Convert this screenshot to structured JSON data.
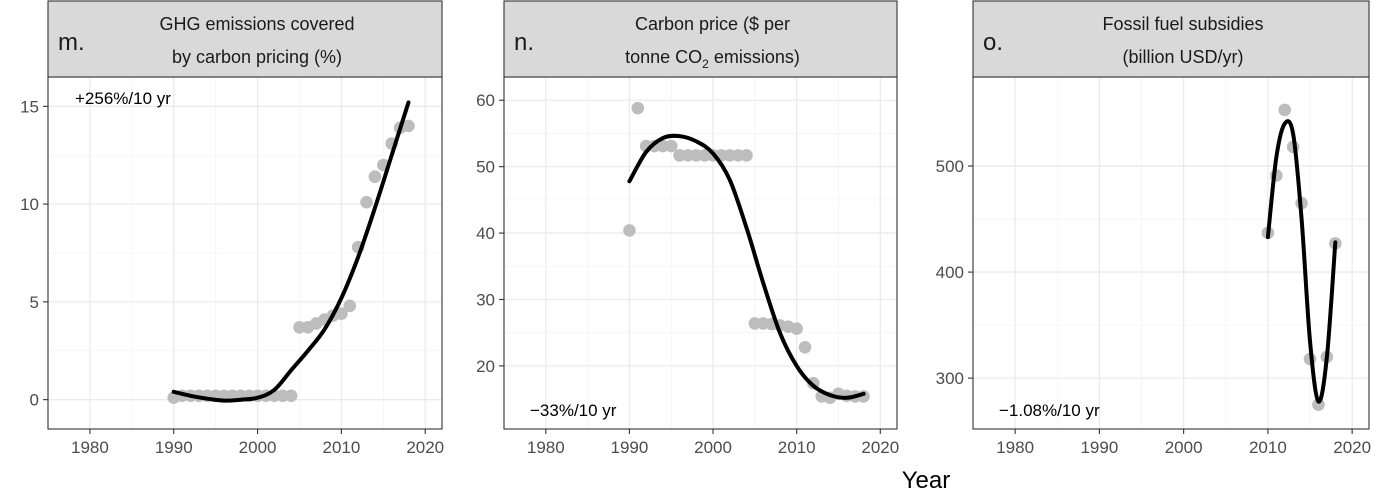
{
  "chart_data": [
    {
      "type": "scatter",
      "panel_letter": "m.",
      "title_lines": [
        "GHG emissions covered",
        "by carbon pricing (%)"
      ],
      "annotation": "+256%/10 yr",
      "xlim": [
        1975,
        2022
      ],
      "ylim": [
        -1.5,
        16.5
      ],
      "xticks": [
        1980,
        1990,
        2000,
        2010,
        2020
      ],
      "yticks": [
        0,
        5,
        10,
        15
      ],
      "points": {
        "x": [
          1990,
          1991,
          1992,
          1993,
          1994,
          1995,
          1996,
          1997,
          1998,
          1999,
          2000,
          2001,
          2002,
          2003,
          2004,
          2005,
          2006,
          2007,
          2008,
          2009,
          2010,
          2011,
          2012,
          2013,
          2014,
          2015,
          2016,
          2017,
          2018
        ],
        "y": [
          0.1,
          0.2,
          0.2,
          0.2,
          0.2,
          0.2,
          0.2,
          0.2,
          0.2,
          0.2,
          0.2,
          0.2,
          0.2,
          0.2,
          0.2,
          3.7,
          3.7,
          3.9,
          4.1,
          4.3,
          4.4,
          4.8,
          7.8,
          10.1,
          11.4,
          12.0,
          13.1,
          13.9,
          14.0
        ]
      },
      "fit": {
        "x": [
          1990,
          1992,
          1994,
          1996,
          1998,
          2000,
          2002,
          2004,
          2006,
          2008,
          2010,
          2012,
          2014,
          2016,
          2018
        ],
        "y": [
          0.4,
          0.2,
          0.05,
          -0.05,
          0.0,
          0.1,
          0.5,
          1.5,
          2.5,
          3.6,
          5.2,
          7.3,
          9.8,
          12.5,
          15.2
        ]
      }
    },
    {
      "type": "scatter",
      "panel_letter": "n.",
      "title_lines": [
        "Carbon price ($ per",
        "tonne CO",
        "2",
        " emissions)"
      ],
      "annotation": "−33%/10 yr",
      "xlim": [
        1975,
        2022
      ],
      "ylim": [
        10.5,
        63.5
      ],
      "xticks": [
        1980,
        1990,
        2000,
        2010,
        2020
      ],
      "yticks": [
        20,
        30,
        40,
        50,
        60
      ],
      "points": {
        "x": [
          1990,
          1991,
          1992,
          1993,
          1994,
          1995,
          1996,
          1997,
          1998,
          1999,
          2000,
          2001,
          2002,
          2003,
          2004,
          2005,
          2006,
          2007,
          2008,
          2009,
          2010,
          2011,
          2012,
          2013,
          2014,
          2015,
          2016,
          2017,
          2018
        ],
        "y": [
          40.4,
          58.8,
          53.1,
          53.1,
          53.1,
          53.1,
          51.7,
          51.7,
          51.7,
          51.7,
          51.7,
          51.7,
          51.7,
          51.7,
          51.7,
          26.4,
          26.4,
          26.3,
          26.1,
          25.9,
          25.6,
          22.8,
          17.4,
          15.4,
          15.2,
          15.8,
          15.5,
          15.4,
          15.4
        ]
      },
      "fit": {
        "x": [
          1990,
          1992,
          1994,
          1996,
          1998,
          2000,
          2002,
          2004,
          2006,
          2008,
          2010,
          2012,
          2014,
          2016,
          2018
        ],
        "y": [
          47.8,
          52.2,
          54.3,
          54.6,
          53.8,
          52.0,
          48.0,
          40.8,
          32.5,
          25.0,
          20.0,
          17.0,
          15.6,
          15.2,
          15.8
        ]
      }
    },
    {
      "type": "scatter",
      "panel_letter": "o.",
      "title_lines": [
        "Fossil fuel subsidies",
        "(billion USD/yr)"
      ],
      "annotation": "−1.08%/10 yr",
      "xlim": [
        1975,
        2022
      ],
      "ylim": [
        252,
        584
      ],
      "xticks": [
        1980,
        1990,
        2000,
        2010,
        2020
      ],
      "yticks": [
        300,
        400,
        500
      ],
      "points": {
        "x": [
          2010,
          2011,
          2012,
          2013,
          2014,
          2015,
          2016,
          2017,
          2018
        ],
        "y": [
          437,
          491,
          553,
          518,
          465,
          318,
          275,
          320,
          427
        ]
      },
      "fit": {
        "x": [
          2010,
          2011,
          2012,
          2013,
          2014,
          2015,
          2016,
          2017,
          2018
        ],
        "y": [
          433,
          508,
          540,
          530,
          450,
          335,
          278,
          320,
          428
        ]
      }
    }
  ],
  "shared_xlabel": "Year"
}
